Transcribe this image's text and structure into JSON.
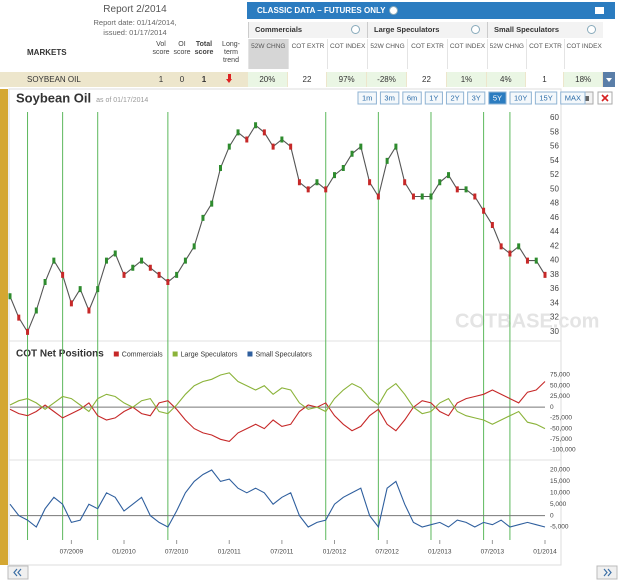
{
  "header": {
    "report": "Report 2/2014",
    "report_date": "Report date: 01/14/2014,",
    "issued": "issued: 01/17/2014",
    "banner": "CLASSIC DATA – FUTURES ONLY",
    "markets": "MARKETS",
    "vol_score": "Vol score",
    "oi_score": "OI score",
    "total_score": "Total score",
    "trend": "Long-term trend",
    "groups": [
      "Commercials",
      "Large Speculators",
      "Small Speculators"
    ],
    "subcolumns": [
      "52W CHNG",
      "COT EXTR",
      "COT INDEX"
    ]
  },
  "row": {
    "market": "SOYBEAN OIL",
    "vol": "1",
    "oi": "0",
    "total": "1",
    "cells": [
      "20%",
      "22",
      "97%",
      "-28%",
      "22",
      "1%",
      "4%",
      "1",
      "18%"
    ]
  },
  "toolbar": {
    "title": "Soybean Oil",
    "asof": "as of 01/17/2014",
    "ranges": [
      "1m",
      "3m",
      "6m",
      "1Y",
      "2Y",
      "3Y",
      "5Y",
      "10Y",
      "15Y",
      "MAX"
    ],
    "active_range_index": 6
  },
  "watermark": "COTBASE.com",
  "chart_data": [
    {
      "type": "line",
      "color": "#555555",
      "up_color": "#2e8b2e",
      "down_color": "#c62828",
      "x": [
        "12/2008",
        "01/2009",
        "02/2009",
        "03/2009",
        "04/2009",
        "05/2009",
        "06/2009",
        "07/2009",
        "08/2009",
        "09/2009",
        "10/2009",
        "11/2009",
        "12/2009",
        "01/2010",
        "02/2010",
        "03/2010",
        "04/2010",
        "05/2010",
        "06/2010",
        "07/2010",
        "08/2010",
        "09/2010",
        "10/2010",
        "11/2010",
        "12/2010",
        "01/2011",
        "02/2011",
        "03/2011",
        "04/2011",
        "05/2011",
        "06/2011",
        "07/2011",
        "08/2011",
        "09/2011",
        "10/2011",
        "11/2011",
        "12/2011",
        "01/2012",
        "02/2012",
        "03/2012",
        "04/2012",
        "05/2012",
        "06/2012",
        "07/2012",
        "08/2012",
        "09/2012",
        "10/2012",
        "11/2012",
        "12/2012",
        "01/2013",
        "02/2013",
        "03/2013",
        "04/2013",
        "05/2013",
        "06/2013",
        "07/2013",
        "08/2013",
        "09/2013",
        "10/2013",
        "11/2013",
        "12/2013",
        "01/2014"
      ],
      "values": [
        35,
        32,
        30,
        33,
        37,
        40,
        38,
        34,
        36,
        33,
        36,
        40,
        41,
        38,
        39,
        40,
        39,
        38,
        37,
        38,
        40,
        42,
        46,
        48,
        53,
        56,
        58,
        57,
        59,
        58,
        56,
        57,
        56,
        51,
        50,
        51,
        50,
        52,
        53,
        55,
        56,
        51,
        49,
        54,
        56,
        51,
        49,
        49,
        49,
        51,
        52,
        50,
        50,
        49,
        47,
        45,
        42,
        41,
        42,
        40,
        40,
        38
      ],
      "ylim": [
        29,
        61
      ],
      "yticks": [
        30,
        32,
        34,
        36,
        38,
        40,
        42,
        44,
        46,
        48,
        50,
        52,
        54,
        56,
        58,
        60
      ],
      "signals": [
        "02/2009",
        "06/2009",
        "10/2009",
        "06/2010",
        "12/2011",
        "06/2012",
        "12/2012",
        "06/2013",
        "09/2013"
      ],
      "signal_color": "#5cb85c"
    },
    {
      "type": "line",
      "title": "COT Net Positions",
      "x": [
        "12/2008",
        "01/2009",
        "02/2009",
        "03/2009",
        "04/2009",
        "05/2009",
        "06/2009",
        "07/2009",
        "08/2009",
        "09/2009",
        "10/2009",
        "11/2009",
        "12/2009",
        "01/2010",
        "02/2010",
        "03/2010",
        "04/2010",
        "05/2010",
        "06/2010",
        "07/2010",
        "08/2010",
        "09/2010",
        "10/2010",
        "11/2010",
        "12/2010",
        "01/2011",
        "02/2011",
        "03/2011",
        "04/2011",
        "05/2011",
        "06/2011",
        "07/2011",
        "08/2011",
        "09/2011",
        "10/2011",
        "11/2011",
        "12/2011",
        "01/2012",
        "02/2012",
        "03/2012",
        "04/2012",
        "05/2012",
        "06/2012",
        "07/2012",
        "08/2012",
        "09/2012",
        "10/2012",
        "11/2012",
        "12/2012",
        "01/2013",
        "02/2013",
        "03/2013",
        "04/2013",
        "05/2013",
        "06/2013",
        "07/2013",
        "08/2013",
        "09/2013",
        "10/2013",
        "11/2013",
        "12/2013",
        "01/2014"
      ],
      "xticks": [
        "07/2009",
        "01/2010",
        "07/2010",
        "01/2011",
        "07/2011",
        "01/2012",
        "07/2012",
        "01/2013",
        "07/2013",
        "01/2014"
      ],
      "series": [
        {
          "name": "Commercials",
          "color": "#c62828",
          "values": [
            -5000,
            -15000,
            -20000,
            -10000,
            5000,
            -10000,
            -25000,
            -15000,
            -5000,
            10000,
            -20000,
            -30000,
            -25000,
            -10000,
            0,
            -15000,
            -20000,
            10000,
            15000,
            -5000,
            -30000,
            -50000,
            -60000,
            -65000,
            -75000,
            -80000,
            -60000,
            -50000,
            -40000,
            -50000,
            -30000,
            -45000,
            -40000,
            -10000,
            5000,
            0,
            10000,
            -20000,
            -40000,
            -55000,
            -45000,
            -20000,
            -5000,
            -40000,
            -55000,
            -30000,
            0,
            15000,
            10000,
            -10000,
            -20000,
            10000,
            20000,
            25000,
            30000,
            40000,
            30000,
            20000,
            10000,
            35000,
            40000,
            60000
          ]
        },
        {
          "name": "Large Speculators",
          "color": "#8bb33a",
          "values": [
            5000,
            15000,
            20000,
            10000,
            -5000,
            10000,
            25000,
            20000,
            5000,
            -10000,
            20000,
            30000,
            25000,
            10000,
            0,
            15000,
            20000,
            -10000,
            -15000,
            5000,
            30000,
            50000,
            60000,
            65000,
            75000,
            80000,
            60000,
            50000,
            40000,
            50000,
            30000,
            45000,
            40000,
            10000,
            -5000,
            0,
            -10000,
            20000,
            40000,
            55000,
            45000,
            20000,
            5000,
            40000,
            55000,
            30000,
            0,
            -15000,
            -10000,
            10000,
            20000,
            -10000,
            -20000,
            -25000,
            -30000,
            -40000,
            -30000,
            -20000,
            -10000,
            -35000,
            -40000,
            -50000
          ]
        },
        {
          "name": "Small Speculators",
          "color": "#2f5f9e",
          "axis": "y2",
          "values": [
            5000,
            0,
            -2000,
            -5000,
            3000,
            8000,
            5000,
            -3000,
            -2000,
            5000,
            3000,
            10000,
            8000,
            2000,
            5000,
            8000,
            0,
            -3000,
            -5000,
            2000,
            10000,
            15000,
            18000,
            20000,
            15000,
            16000,
            12000,
            10000,
            12000,
            10000,
            5000,
            8000,
            10000,
            0,
            -5000,
            -3000,
            -2000,
            5000,
            8000,
            10000,
            12000,
            0,
            -5000,
            12000,
            15000,
            5000,
            -3000,
            -5000,
            -4000,
            -3000,
            -5000,
            -2000,
            -3000,
            -5000,
            -3000,
            -4000,
            -2000,
            -5000,
            -4000,
            -3000,
            -4000,
            -5000
          ]
        }
      ],
      "ylim": [
        -110000,
        90000
      ],
      "yticks": [
        {
          "value": 75000,
          "label": "75,000"
        },
        {
          "value": 50000,
          "label": "50,000"
        },
        {
          "value": 25000,
          "label": "25,000"
        },
        0,
        {
          "value": -25000,
          "label": "-25,000"
        },
        {
          "value": -50000,
          "label": "-50,000"
        },
        {
          "value": -75000,
          "label": "-75,000"
        },
        {
          "value": -100000,
          "label": "-100,000"
        }
      ],
      "y2lim": [
        -10000,
        22000
      ],
      "y2ticks": [
        {
          "value": 20000,
          "label": "20,000"
        },
        {
          "value": 15000,
          "label": "15,000"
        },
        {
          "value": 10000,
          "label": "10,000"
        },
        {
          "value": 5000,
          "label": "5,000"
        },
        0,
        {
          "value": -5000,
          "label": "-5,000"
        }
      ]
    }
  ]
}
